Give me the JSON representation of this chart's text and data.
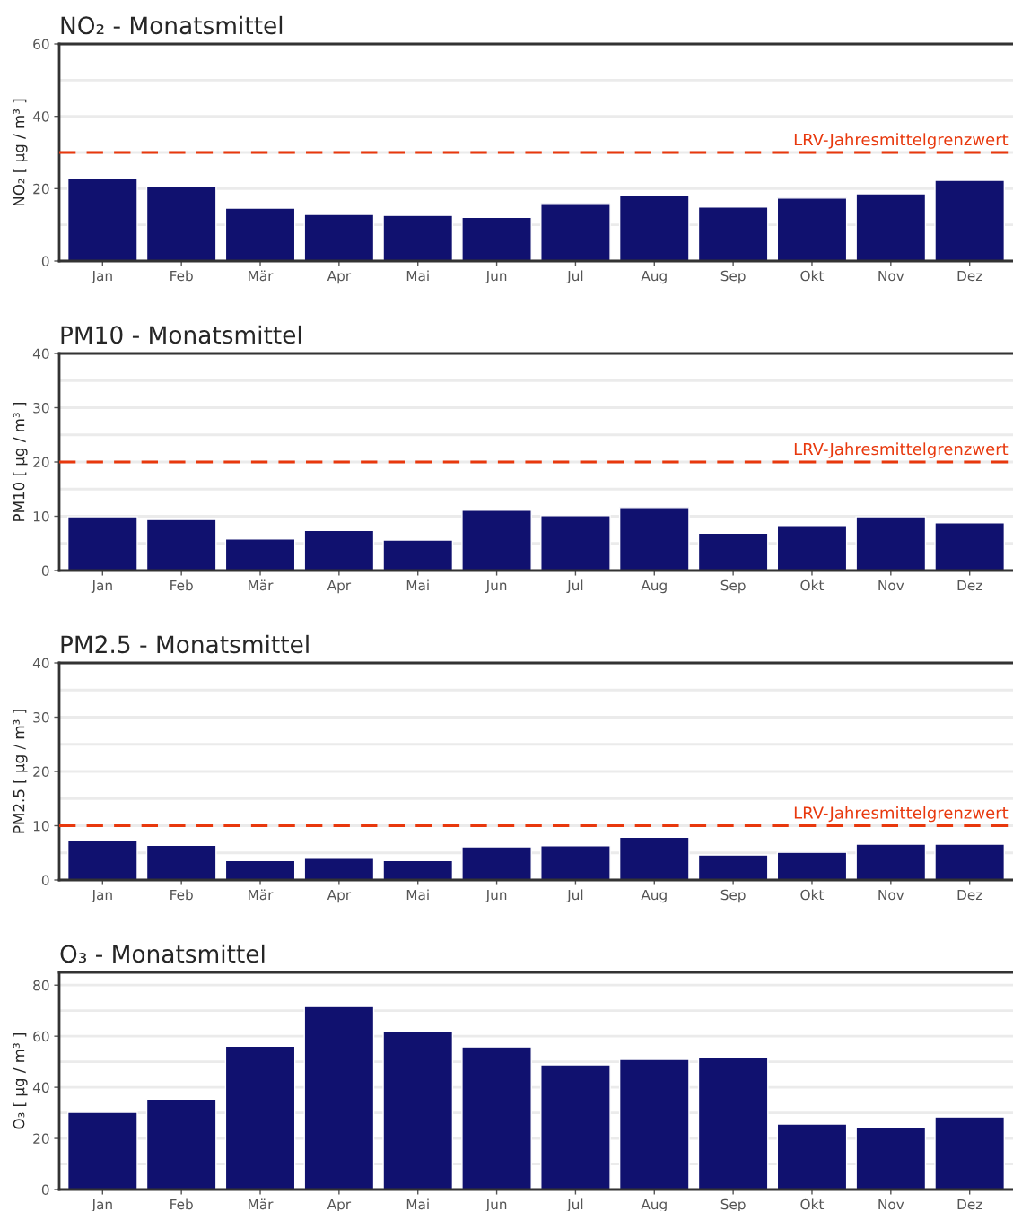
{
  "chart_data": [
    {
      "type": "bar",
      "title": "NO₂ - Monatsmittel",
      "ylabel": "NO₂ [ µg / m³ ]",
      "categories": [
        "Jan",
        "Feb",
        "Mär",
        "Apr",
        "Mai",
        "Jun",
        "Jul",
        "Aug",
        "Sep",
        "Okt",
        "Nov",
        "Dez"
      ],
      "series": [
        {
          "color": "#10116f",
          "values": [
            22.8,
            20.6,
            14.6,
            12.9,
            12.6,
            12.1,
            15.9,
            18.3,
            14.9,
            17.4,
            18.6,
            22.3
          ]
        }
      ],
      "ylim": [
        0,
        60
      ],
      "yticks": [
        0,
        20,
        40,
        60
      ],
      "grid": "y",
      "ref_lines": [
        {
          "axis": "y",
          "value": 30,
          "label": "LRV-Jahresmittelgrenzwert",
          "color": "#e8380d",
          "line_style": "dashed"
        }
      ]
    },
    {
      "type": "bar",
      "title": "PM10 - Monatsmittel",
      "ylabel": "PM10 [ µg / m³ ]",
      "categories": [
        "Jan",
        "Feb",
        "Mär",
        "Apr",
        "Mai",
        "Jun",
        "Jul",
        "Aug",
        "Sep",
        "Okt",
        "Nov",
        "Dez"
      ],
      "series": [
        {
          "color": "#10116f",
          "values": [
            9.9,
            9.4,
            5.8,
            7.4,
            5.6,
            11.1,
            10.1,
            11.6,
            6.9,
            8.3,
            9.9,
            8.8
          ]
        }
      ],
      "ylim": [
        0,
        40
      ],
      "yticks": [
        0,
        10,
        20,
        30,
        40
      ],
      "grid": "y",
      "ref_lines": [
        {
          "axis": "y",
          "value": 20,
          "label": "LRV-Jahresmittelgrenzwert",
          "color": "#e8380d",
          "line_style": "dashed"
        }
      ]
    },
    {
      "type": "bar",
      "title": "PM2.5 - Monatsmittel",
      "ylabel": "PM2.5 [ µg / m³ ]",
      "categories": [
        "Jan",
        "Feb",
        "Mär",
        "Apr",
        "Mai",
        "Jun",
        "Jul",
        "Aug",
        "Sep",
        "Okt",
        "Nov",
        "Dez"
      ],
      "series": [
        {
          "color": "#10116f",
          "values": [
            7.4,
            6.4,
            3.6,
            4.0,
            3.6,
            6.1,
            6.3,
            7.9,
            4.6,
            5.1,
            6.6,
            6.6
          ]
        }
      ],
      "ylim": [
        0,
        40
      ],
      "yticks": [
        0,
        10,
        20,
        30,
        40
      ],
      "grid": "y",
      "ref_lines": [
        {
          "axis": "y",
          "value": 10,
          "label": "LRV-Jahresmittelgrenzwert",
          "color": "#e8380d",
          "line_style": "dashed"
        }
      ]
    },
    {
      "type": "bar",
      "title": "O₃ - Monatsmittel",
      "ylabel": "O₃ [ µg / m³ ]",
      "categories": [
        "Jan",
        "Feb",
        "Mär",
        "Apr",
        "Mai",
        "Jun",
        "Jul",
        "Aug",
        "Sep",
        "Okt",
        "Nov",
        "Dez"
      ],
      "series": [
        {
          "color": "#10116f",
          "values": [
            30.2,
            35.4,
            56.1,
            71.6,
            61.8,
            55.8,
            48.8,
            50.9,
            51.9,
            25.6,
            24.2,
            28.4
          ]
        }
      ],
      "ylim": [
        0,
        85
      ],
      "yticks": [
        0,
        20,
        40,
        60,
        80
      ],
      "grid": "y"
    }
  ]
}
